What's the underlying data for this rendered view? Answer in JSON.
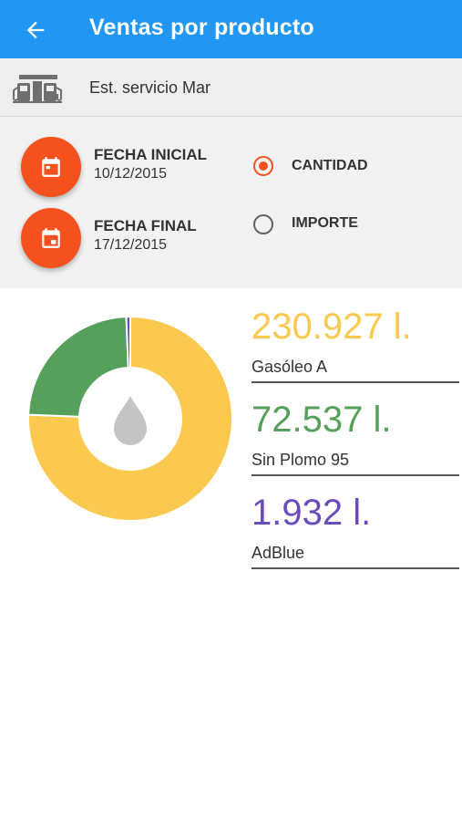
{
  "appbar": {
    "title": "Ventas por producto"
  },
  "station": {
    "name": "Est. servicio Mar"
  },
  "filters": {
    "start_label": "FECHA INICIAL",
    "start_date": "10/12/2015",
    "end_label": "FECHA FINAL",
    "end_date": "17/12/2015",
    "options": [
      {
        "label": "CANTIDAD",
        "selected": true
      },
      {
        "label": "IMPORTE",
        "selected": false
      }
    ]
  },
  "products": [
    {
      "amount": "230.927 l.",
      "name": "Gasóleo A",
      "value": 230927,
      "color": "#fbc94f"
    },
    {
      "amount": "72.537 l.",
      "name": "Sin Plomo 95",
      "value": 72537,
      "color": "#55a05a"
    },
    {
      "amount": "1.932 l.",
      "name": "AdBlue",
      "value": 1932,
      "color": "#6a4db8"
    }
  ],
  "colors": {
    "primary": "#2196f3",
    "accent": "#f4511e",
    "drop": "#c4c4c4"
  },
  "icons": {
    "back": "arrow-left-icon",
    "station": "fuel-station-icon",
    "date": "calendar-icon",
    "center": "fuel-drop-icon"
  }
}
